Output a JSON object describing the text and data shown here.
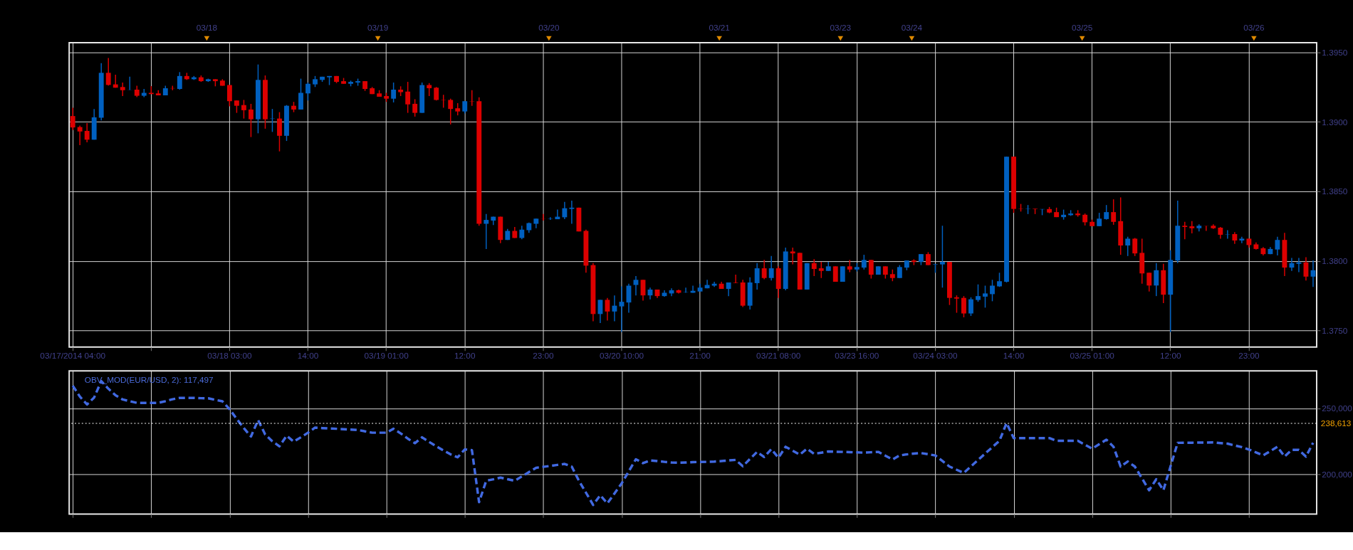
{
  "chart_data": [
    {
      "type": "candlestick",
      "grid": true,
      "categories": [
        "03/17/2014 04:00",
        null,
        null,
        null,
        null,
        null,
        null,
        null,
        null,
        null,
        null,
        null,
        null,
        null,
        null,
        null,
        null,
        null,
        null,
        null,
        null,
        null,
        "03/18 03:00",
        null,
        null,
        null,
        null,
        null,
        null,
        null,
        null,
        null,
        null,
        "14:00",
        null,
        null,
        null,
        null,
        null,
        null,
        null,
        null,
        null,
        null,
        "03/19 01:00",
        null,
        null,
        null,
        null,
        null,
        null,
        null,
        null,
        null,
        null,
        "12:00",
        null,
        null,
        null,
        null,
        null,
        null,
        null,
        null,
        null,
        null,
        "23:00",
        null,
        null,
        null,
        null,
        null,
        null,
        null,
        null,
        null,
        null,
        "03/20 10:00",
        null,
        null,
        null,
        null,
        null,
        null,
        null,
        null,
        null,
        null,
        "21:00",
        null,
        null,
        null,
        null,
        null,
        null,
        null,
        null,
        null,
        null,
        "03/21 08:00",
        null,
        null,
        null,
        null,
        null,
        null,
        null,
        null,
        null,
        null,
        "03/23 16:00",
        null,
        null,
        null,
        null,
        null,
        null,
        null,
        null,
        null,
        null,
        "03/24 03:00",
        null,
        null,
        null,
        null,
        null,
        null,
        null,
        null,
        null,
        null,
        "14:00",
        null,
        null,
        null,
        null,
        null,
        null,
        null,
        null,
        null,
        null,
        "03/25 01:00",
        null,
        null,
        null,
        null,
        null,
        null,
        null,
        null,
        null,
        null,
        "12:00",
        null,
        null,
        null,
        null,
        null,
        null,
        null,
        null,
        null,
        null,
        "23:00",
        null,
        null,
        null,
        null,
        null,
        null,
        null,
        null,
        null
      ],
      "annotations": [
        "03/18",
        "03/19",
        "03/20",
        "03/21",
        "03/23",
        "03/24",
        "03/25",
        "03/26"
      ],
      "ylim": [
        1.3738,
        1.3957
      ],
      "yticks": [
        {
          "value": 1.375,
          "label": "1.3750"
        },
        {
          "value": 1.38,
          "label": "1.3800"
        },
        {
          "value": 1.385,
          "label": "1.3850"
        },
        {
          "value": 1.39,
          "label": "1.3900"
        },
        {
          "value": 1.395,
          "label": "1.3950"
        }
      ],
      "colors": [
        "#dd0000",
        "#dd0000",
        "#dd0000",
        "#0060c0",
        "#0060c0",
        "#dd0000",
        "#dd0000",
        "#dd0000",
        "#0060c0",
        "#dd0000",
        "#0060c0",
        "#dd0000",
        "#dd0000",
        "#0060c0",
        "#dd0000",
        "#0060c0",
        "#dd0000",
        "#0060c0",
        "#dd0000",
        "#0060c0",
        "#dd0000",
        "#dd0000",
        "#dd0000",
        "#dd0000",
        "#dd0000",
        "#dd0000",
        "#0060c0",
        "#dd0000",
        "#0060c0",
        "#dd0000",
        "#0060c0",
        "#dd0000",
        "#0060c0",
        "#0060c0",
        "#0060c0",
        "#0060c0",
        "#0060c0",
        "#dd0000",
        "#dd0000",
        "#0060c0",
        "#0060c0",
        "#dd0000",
        "#dd0000",
        "#dd0000",
        "#dd0000",
        "#0060c0",
        "#dd0000",
        "#dd0000",
        "#dd0000",
        "#0060c0",
        "#dd0000",
        "#dd0000",
        "#dd0000",
        "#dd0000",
        "#dd0000",
        "#0060c0",
        "#dd0000",
        "#dd0000",
        "#0060c0",
        "#0060c0",
        "#dd0000",
        "#0060c0",
        "#dd0000",
        "#0060c0",
        "#0060c0",
        "#0060c0",
        "#dd0000",
        "#0060c0",
        "#0060c0",
        "#0060c0",
        "#0060c0",
        "#dd0000",
        "#dd0000",
        "#dd0000",
        "#0060c0",
        "#dd0000",
        "#0060c0",
        "#0060c0",
        "#0060c0",
        "#0060c0",
        "#dd0000",
        "#0060c0",
        "#dd0000",
        "#0060c0",
        "#0060c0",
        "#dd0000",
        "#0060c0",
        "#0060c0",
        "#0060c0",
        "#0060c0",
        "#0060c0",
        "#dd0000",
        "#0060c0",
        "#dd0000",
        "#dd0000",
        "#0060c0",
        "#0060c0",
        "#dd0000",
        "#0060c0",
        "#dd0000",
        "#0060c0",
        "#dd0000",
        "#dd0000",
        "#0060c0",
        "#dd0000",
        "#dd0000",
        "#0060c0",
        "#dd0000",
        "#0060c0",
        "#dd0000",
        "#0060c0",
        "#0060c0",
        "#dd0000",
        "#0060c0",
        "#dd0000",
        "#dd0000",
        "#0060c0",
        "#0060c0",
        "#dd0000",
        "#0060c0",
        "#dd0000",
        "#0060c0",
        "#0060c0",
        "#dd0000",
        "#dd0000",
        "#dd0000",
        "#0060c0",
        "#0060c0",
        "#0060c0",
        "#0060c0",
        "#0060c0",
        "#0060c0",
        "#dd0000",
        "#dd0000",
        "#0060c0",
        "#dd0000",
        "#0060c0",
        "#dd0000",
        "#dd0000",
        "#0060c0",
        "#0060c0",
        "#dd0000",
        "#dd0000",
        "#dd0000",
        "#0060c0",
        "#0060c0",
        "#dd0000",
        "#dd0000",
        "#0060c0",
        "#dd0000",
        "#dd0000",
        "#dd0000",
        "#0060c0",
        "#dd0000",
        "#0060c0",
        "#0060c0",
        "#dd0000",
        "#dd0000",
        "#0060c0",
        "#dd0000",
        "#dd0000",
        "#dd0000",
        "#0060c0",
        "#dd0000",
        "#0060c0",
        "#dd0000",
        "#dd0000",
        "#dd0000",
        "#0060c0",
        "#0060c0",
        "#dd0000",
        "#0060c0",
        "#0060c0",
        "#dd0000",
        "#0060c0"
      ],
      "ohlc": [
        [
          1.39042,
          1.39102,
          1.38942,
          1.3896
        ],
        [
          1.38963,
          1.38973,
          1.38833,
          1.38931
        ],
        [
          1.38935,
          1.38991,
          1.38853,
          1.38872
        ],
        [
          1.38872,
          1.39093,
          1.38872,
          1.39033
        ],
        [
          1.3903,
          1.39423,
          1.39011,
          1.39353
        ],
        [
          1.39353,
          1.3946,
          1.39262,
          1.39266
        ],
        [
          1.3927,
          1.39339,
          1.39246,
          1.39246
        ],
        [
          1.39251,
          1.39283,
          1.39186,
          1.39228
        ],
        [
          1.3923,
          1.39325,
          1.3923,
          1.39231
        ],
        [
          1.39232,
          1.3926,
          1.39178,
          1.39188
        ],
        [
          1.39188,
          1.39237,
          1.39178,
          1.39209
        ],
        [
          1.39209,
          1.39257,
          1.392,
          1.392
        ],
        [
          1.39205,
          1.39228,
          1.39191,
          1.39191
        ],
        [
          1.39191,
          1.3926,
          1.39191,
          1.39242
        ],
        [
          1.39243,
          1.3926,
          1.39228,
          1.39241
        ],
        [
          1.39237,
          1.39358,
          1.39232,
          1.3933
        ],
        [
          1.3933,
          1.39353,
          1.39302,
          1.39307
        ],
        [
          1.39307,
          1.3933,
          1.39302,
          1.39321
        ],
        [
          1.39321,
          1.39334,
          1.39288,
          1.39293
        ],
        [
          1.39293,
          1.39311,
          1.39288,
          1.39307
        ],
        [
          1.39307,
          1.39307,
          1.39256,
          1.39293
        ],
        [
          1.39297,
          1.39307,
          1.3926,
          1.3926
        ],
        [
          1.39265,
          1.39265,
          1.39112,
          1.39149
        ],
        [
          1.39154,
          1.39154,
          1.39065,
          1.39116
        ],
        [
          1.39121,
          1.39158,
          1.39024,
          1.39084
        ],
        [
          1.39089,
          1.3913,
          1.38891,
          1.39019
        ],
        [
          1.39019,
          1.39413,
          1.38918,
          1.39302
        ],
        [
          1.39302,
          1.39334,
          1.38951,
          1.39019
        ],
        [
          1.39023,
          1.39093,
          1.38928,
          1.39025
        ],
        [
          1.39024,
          1.3907,
          1.38788,
          1.389
        ],
        [
          1.389,
          1.39121,
          1.38863,
          1.39116
        ],
        [
          1.39116,
          1.39144,
          1.3907,
          1.39089
        ],
        [
          1.39089,
          1.39311,
          1.39089,
          1.39209
        ],
        [
          1.39205,
          1.39283,
          1.39154,
          1.39274
        ],
        [
          1.3927,
          1.3933,
          1.39251,
          1.39307
        ],
        [
          1.39302,
          1.39325,
          1.39288,
          1.39325
        ],
        [
          1.39321,
          1.3933,
          1.39265,
          1.3933
        ],
        [
          1.3933,
          1.3933,
          1.39279,
          1.39288
        ],
        [
          1.39293,
          1.39316,
          1.39274,
          1.39274
        ],
        [
          1.39274,
          1.39297,
          1.39256,
          1.39288
        ],
        [
          1.39283,
          1.39311,
          1.3926,
          1.39293
        ],
        [
          1.39293,
          1.39293,
          1.39223,
          1.39237
        ],
        [
          1.39242,
          1.39251,
          1.392,
          1.392
        ],
        [
          1.39205,
          1.39228,
          1.39181,
          1.39181
        ],
        [
          1.39186,
          1.39209,
          1.39144,
          1.39167
        ],
        [
          1.39167,
          1.39283,
          1.3914,
          1.39232
        ],
        [
          1.39232,
          1.39256,
          1.39186,
          1.39214
        ],
        [
          1.39218,
          1.39288,
          1.39065,
          1.39126
        ],
        [
          1.3913,
          1.39163,
          1.39038,
          1.39065
        ],
        [
          1.39065,
          1.39283,
          1.39065,
          1.39265
        ],
        [
          1.39265,
          1.39279,
          1.39186,
          1.39242
        ],
        [
          1.39246,
          1.39251,
          1.39154,
          1.39158
        ],
        [
          1.39159,
          1.39195,
          1.39102,
          1.39157
        ],
        [
          1.39158,
          1.39167,
          1.38982,
          1.39093
        ],
        [
          1.39098,
          1.39135,
          1.39047,
          1.39075
        ],
        [
          1.39075,
          1.39149,
          1.39061,
          1.39149
        ],
        [
          1.3915,
          1.39228,
          1.39116,
          1.39148
        ],
        [
          1.39149,
          1.39177,
          1.38253,
          1.38267
        ],
        [
          1.38267,
          1.38337,
          1.38086,
          1.38295
        ],
        [
          1.3829,
          1.38318,
          1.38258,
          1.38318
        ],
        [
          1.38318,
          1.38318,
          1.38128,
          1.38151
        ],
        [
          1.38151,
          1.3823,
          1.38151,
          1.38216
        ],
        [
          1.38216,
          1.38244,
          1.38165,
          1.38165
        ],
        [
          1.38165,
          1.38253,
          1.38156,
          1.38225
        ],
        [
          1.38221,
          1.38276,
          1.38202,
          1.38272
        ],
        [
          1.38267,
          1.38304,
          1.38235,
          1.38304
        ],
        [
          1.38303,
          1.38337,
          1.3829,
          1.38302
        ],
        [
          1.38302,
          1.38314,
          1.38295,
          1.38304
        ],
        [
          1.383,
          1.38369,
          1.383,
          1.38318
        ],
        [
          1.38314,
          1.38425,
          1.383,
          1.38379
        ],
        [
          1.38374,
          1.38434,
          1.38267,
          1.38383
        ],
        [
          1.38383,
          1.38383,
          1.38212,
          1.38212
        ],
        [
          1.38216,
          1.38225,
          1.37915,
          1.37966
        ],
        [
          1.3797,
          1.37984,
          1.37566,
          1.37618
        ],
        [
          1.37618,
          1.3772,
          1.37553,
          1.3772
        ],
        [
          1.3772,
          1.37734,
          1.37571,
          1.37636
        ],
        [
          1.37636,
          1.37752,
          1.37566,
          1.37678
        ],
        [
          1.37673,
          1.37817,
          1.37488,
          1.37706
        ],
        [
          1.37701,
          1.37836,
          1.37627,
          1.37822
        ],
        [
          1.37827,
          1.37891,
          1.37752,
          1.37864
        ],
        [
          1.37864,
          1.37864,
          1.37715,
          1.37752
        ],
        [
          1.37752,
          1.37808,
          1.37724,
          1.37794
        ],
        [
          1.37794,
          1.37794,
          1.37734,
          1.37747
        ],
        [
          1.37747,
          1.37789,
          1.37743,
          1.37771
        ],
        [
          1.37766,
          1.37803,
          1.37747,
          1.37789
        ],
        [
          1.37789,
          1.37794,
          1.37766,
          1.37771
        ],
        [
          1.37774,
          1.37808,
          1.37771,
          1.37776
        ],
        [
          1.37771,
          1.37822,
          1.37771,
          1.37785
        ],
        [
          1.3778,
          1.37836,
          1.3778,
          1.37808
        ],
        [
          1.37803,
          1.37864,
          1.37803,
          1.37827
        ],
        [
          1.37822,
          1.3785,
          1.37813,
          1.37836
        ],
        [
          1.37836,
          1.3785,
          1.37799,
          1.37799
        ],
        [
          1.37799,
          1.37845,
          1.37747,
          1.37845
        ],
        [
          1.37844,
          1.37901,
          1.3784,
          1.37841
        ],
        [
          1.37845,
          1.37864,
          1.37669,
          1.37678
        ],
        [
          1.37678,
          1.37882,
          1.3765,
          1.37845
        ],
        [
          1.3784,
          1.37984,
          1.37794,
          1.37947
        ],
        [
          1.37947,
          1.38007,
          1.37868,
          1.37877
        ],
        [
          1.37877,
          1.38035,
          1.37859,
          1.37947
        ],
        [
          1.37947,
          1.37961,
          1.37734,
          1.37799
        ],
        [
          1.37799,
          1.38096,
          1.37789,
          1.38068
        ],
        [
          1.38068,
          1.38096,
          1.37975,
          1.38054
        ],
        [
          1.38058,
          1.38058,
          1.37794,
          1.37794
        ],
        [
          1.37794,
          1.37984,
          1.37794,
          1.37984
        ],
        [
          1.37984,
          1.38012,
          1.37891,
          1.37942
        ],
        [
          1.37947,
          1.37993,
          1.37877,
          1.37928
        ],
        [
          1.37928,
          1.37993,
          1.37928,
          1.37961
        ],
        [
          1.37961,
          1.37961,
          1.3785,
          1.3785
        ],
        [
          1.3785,
          1.37961,
          1.3785,
          1.37961
        ],
        [
          1.37961,
          1.38007,
          1.37919,
          1.37938
        ],
        [
          1.37938,
          1.37984,
          1.37924,
          1.37956
        ],
        [
          1.37952,
          1.38044,
          1.37938,
          1.38007
        ],
        [
          1.38007,
          1.38007,
          1.37873,
          1.37901
        ],
        [
          1.37901,
          1.37961,
          1.37901,
          1.37961
        ],
        [
          1.37961,
          1.37961,
          1.37873,
          1.37901
        ],
        [
          1.37905,
          1.37938,
          1.37854,
          1.37877
        ],
        [
          1.37877,
          1.3797,
          1.37877,
          1.37956
        ],
        [
          1.37952,
          1.38003,
          1.37933,
          1.38003
        ],
        [
          1.38003,
          1.38012,
          1.3797,
          1.37993
        ],
        [
          1.37993,
          1.38049,
          1.3797,
          1.38049
        ],
        [
          1.38049,
          1.38063,
          1.3797,
          1.3797
        ],
        [
          1.37975,
          1.37979,
          1.37915,
          1.37978
        ],
        [
          1.37975,
          1.38253,
          1.37808,
          1.37993
        ],
        [
          1.37993,
          1.37993,
          1.37683,
          1.37734
        ],
        [
          1.37738,
          1.37752,
          1.37627,
          1.37729
        ],
        [
          1.37734,
          1.37747,
          1.37594,
          1.37622
        ],
        [
          1.37622,
          1.37738,
          1.37604,
          1.37724
        ],
        [
          1.37719,
          1.37831,
          1.37706,
          1.37747
        ],
        [
          1.37743,
          1.37822,
          1.37664,
          1.37766
        ],
        [
          1.37761,
          1.37864,
          1.3771,
          1.37822
        ],
        [
          1.37817,
          1.37915,
          1.37813,
          1.37854
        ],
        [
          1.3785,
          1.3875,
          1.37845,
          1.3875
        ],
        [
          1.3875,
          1.3875,
          1.38346,
          1.38374
        ],
        [
          1.38376,
          1.3841,
          1.38355,
          1.38374
        ],
        [
          1.38374,
          1.38402,
          1.38337,
          1.38376
        ],
        [
          1.38376,
          1.38376,
          1.38337,
          1.38373
        ],
        [
          1.38371,
          1.38373,
          1.38329,
          1.38373
        ],
        [
          1.38373,
          1.38388,
          1.38343,
          1.38348
        ],
        [
          1.38351,
          1.38383,
          1.38315,
          1.38315
        ],
        [
          1.38315,
          1.38369,
          1.38297,
          1.38332
        ],
        [
          1.38329,
          1.38365,
          1.38324,
          1.38341
        ],
        [
          1.38341,
          1.38365,
          1.38318,
          1.38329
        ],
        [
          1.38332,
          1.38341,
          1.38255,
          1.38278
        ],
        [
          1.38281,
          1.38297,
          1.3825,
          1.3825
        ],
        [
          1.3825,
          1.38346,
          1.3825,
          1.38304
        ],
        [
          1.38301,
          1.38402,
          1.38297,
          1.38351
        ],
        [
          1.38351,
          1.38443,
          1.3826,
          1.38281
        ],
        [
          1.38286,
          1.38457,
          1.38044,
          1.38111
        ],
        [
          1.38111,
          1.38174,
          1.38035,
          1.3816
        ],
        [
          1.3816,
          1.38165,
          1.38035,
          1.38054
        ],
        [
          1.38058,
          1.3816,
          1.37836,
          1.3791
        ],
        [
          1.37915,
          1.37915,
          1.3778,
          1.37823
        ],
        [
          1.37823,
          1.37984,
          1.37747,
          1.37933
        ],
        [
          1.37933,
          1.37979,
          1.37696,
          1.37757
        ],
        [
          1.37757,
          1.38077,
          1.37488,
          1.38007
        ],
        [
          1.38003,
          1.38434,
          1.37984,
          1.38253
        ],
        [
          1.38253,
          1.38281,
          1.38156,
          1.38244
        ],
        [
          1.38249,
          1.38286,
          1.38198,
          1.38235
        ],
        [
          1.38235,
          1.38263,
          1.38212,
          1.38253
        ],
        [
          1.38252,
          1.38252,
          1.38216,
          1.38251
        ],
        [
          1.38253,
          1.38263,
          1.3823,
          1.38235
        ],
        [
          1.38239,
          1.38244,
          1.3816,
          1.38188
        ],
        [
          1.38189,
          1.38221,
          1.3816,
          1.38191
        ],
        [
          1.38193,
          1.38207,
          1.38123,
          1.38147
        ],
        [
          1.38147,
          1.38174,
          1.38128,
          1.3816
        ],
        [
          1.3816,
          1.3816,
          1.38096,
          1.38114
        ],
        [
          1.38119,
          1.38133,
          1.38082,
          1.38086
        ],
        [
          1.38091,
          1.381,
          1.3804,
          1.38049
        ],
        [
          1.38049,
          1.381,
          1.38049,
          1.38086
        ],
        [
          1.38082,
          1.38174,
          1.3804,
          1.38151
        ],
        [
          1.38151,
          1.38202,
          1.37891,
          1.37952
        ],
        [
          1.37952,
          1.38021,
          1.37928,
          1.37984
        ],
        [
          1.37979,
          1.38021,
          1.37919,
          1.37989
        ],
        [
          1.37989,
          1.38026,
          1.37859,
          1.37887
        ],
        [
          1.37887,
          1.38003,
          1.37813,
          1.37933
        ]
      ]
    },
    {
      "type": "line",
      "title": "OBV_MOD(EUR/USD, 2): 117,497",
      "grid": true,
      "line_style": "dashed",
      "categories": [
        null,
        null,
        null,
        null,
        null,
        null,
        null,
        null,
        null,
        null,
        null,
        null,
        null,
        null,
        null,
        null,
        null,
        null,
        null,
        null,
        null,
        null,
        null,
        null,
        null,
        null,
        null,
        null,
        null,
        null,
        null,
        null,
        null,
        null,
        null,
        null,
        null,
        null,
        null,
        null,
        null,
        null,
        null,
        null,
        null,
        null,
        null,
        null,
        null,
        null,
        null,
        null,
        null,
        null,
        null,
        null,
        null,
        null,
        null,
        null,
        null,
        null,
        null,
        null,
        null,
        null,
        null,
        null,
        null,
        null,
        null,
        null,
        null,
        null,
        null,
        null,
        null,
        null,
        null,
        null,
        null,
        null,
        null,
        null,
        null,
        null,
        null,
        null,
        null,
        null,
        null,
        null,
        null,
        null,
        null,
        null,
        null,
        null,
        null,
        null,
        null,
        null,
        null,
        null,
        null,
        null,
        null,
        null,
        null,
        null,
        null,
        null,
        null,
        null,
        null,
        null,
        null,
        null,
        null,
        null,
        null,
        null,
        null,
        null,
        null,
        null,
        null,
        null,
        null,
        null,
        null,
        null,
        null,
        null,
        null,
        null,
        null,
        null,
        null,
        null,
        null,
        null,
        null,
        null,
        null,
        null,
        null,
        null,
        null,
        null,
        null,
        null,
        null,
        null,
        null,
        null,
        null,
        null,
        null,
        null,
        null,
        null,
        null,
        null,
        null,
        null,
        null,
        null,
        null,
        null,
        null,
        null,
        null,
        null,
        null
      ],
      "ylim": [
        169600,
        278600
      ],
      "yticks": [
        {
          "value": 200000,
          "label": "200,000"
        },
        {
          "value": 250000,
          "label": "250,000"
        }
      ],
      "ref_lines": [
        {
          "axis": "y",
          "value": 238613,
          "label": "238,613",
          "color": "#ffffff",
          "line_style": "dotted"
        }
      ],
      "series": [
        {
          "color": "#4169e1",
          "values": [
            267300,
            259000,
            253000,
            258300,
            270800,
            265000,
            260000,
            256800,
            255500,
            254200,
            254200,
            254200,
            254200,
            255500,
            257000,
            258000,
            258000,
            258000,
            257800,
            257700,
            256500,
            255400,
            249400,
            242000,
            235000,
            228600,
            241100,
            230100,
            225000,
            221100,
            229200,
            224700,
            228000,
            231500,
            235400,
            235000,
            234700,
            234500,
            234200,
            233900,
            233600,
            232500,
            231500,
            231500,
            231500,
            234500,
            231000,
            227000,
            223500,
            228000,
            224500,
            221100,
            218000,
            215000,
            212800,
            218800,
            218200,
            178600,
            194900,
            196000,
            197300,
            196100,
            194900,
            198200,
            201500,
            204800,
            205500,
            206200,
            207000,
            207700,
            205700,
            195000,
            185800,
            176500,
            183900,
            177700,
            185300,
            192900,
            202100,
            211300,
            208300,
            210400,
            209900,
            209300,
            208800,
            208600,
            208800,
            209100,
            209200,
            209300,
            209500,
            209900,
            210400,
            210800,
            206000,
            211500,
            216900,
            213000,
            219000,
            212400,
            220800,
            217800,
            214800,
            219300,
            215400,
            216300,
            217200,
            217000,
            216900,
            216700,
            216500,
            216300,
            216600,
            216900,
            214000,
            211100,
            214200,
            215000,
            215600,
            216000,
            215100,
            214200,
            210000,
            205700,
            203300,
            200900,
            205800,
            210700,
            215600,
            220500,
            225300,
            238900,
            227400,
            227400,
            227400,
            227400,
            227400,
            227400,
            225300,
            225300,
            225300,
            225300,
            222300,
            219300,
            222800,
            226200,
            220800,
            205700,
            209600,
            205700,
            196700,
            187700,
            196100,
            187700,
            205800,
            223800,
            223900,
            223900,
            224000,
            224000,
            224100,
            223600,
            223200,
            221800,
            220500,
            218700,
            216500,
            214200,
            217500,
            220800,
            213300,
            218400,
            218400,
            213300,
            223800
          ]
        }
      ]
    }
  ]
}
